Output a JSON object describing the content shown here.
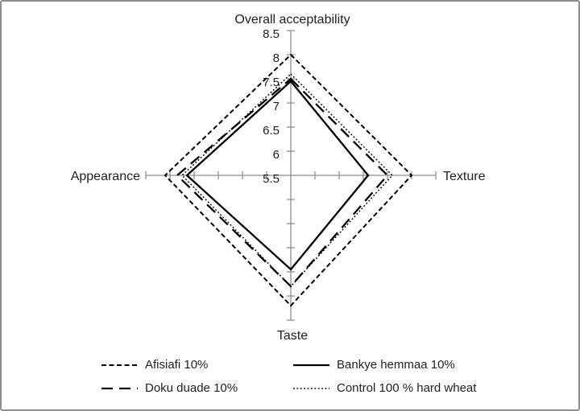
{
  "chart_data": {
    "type": "radar",
    "title": "",
    "axes": [
      {
        "label": "Overall acceptability",
        "position": "top"
      },
      {
        "label": "Texture",
        "position": "right"
      },
      {
        "label": "Taste",
        "position": "bottom"
      },
      {
        "label": "Appearance",
        "position": "left"
      }
    ],
    "scale": {
      "min": 5.5,
      "max": 8.5,
      "step": 0.5,
      "tick_labels_top_to_center": [
        "8.5",
        "8",
        "7.5",
        "7",
        "6.5",
        "6",
        "5.5"
      ]
    },
    "values_axis_order": [
      "Overall acceptability",
      "Texture",
      "Taste",
      "Appearance"
    ],
    "series": [
      {
        "name": "Afisiafi 10%",
        "line_style": "dash",
        "values": [
          8.0,
          8.0,
          8.2,
          8.1
        ]
      },
      {
        "name": "Bankye hemmaa 10%",
        "line_style": "solid",
        "values": [
          7.45,
          7.1,
          7.45,
          7.65
        ]
      },
      {
        "name": "Doku duade 10%",
        "line_style": "long-dash",
        "values": [
          7.5,
          7.5,
          7.8,
          7.85
        ]
      },
      {
        "name": "Control 100 % hard wheat",
        "line_style": "dot",
        "values": [
          7.6,
          7.6,
          7.8,
          7.75
        ]
      }
    ],
    "grid": "ticks-only-no-rings",
    "legend_position": "bottom",
    "colors": {
      "series_line": "#000000",
      "axis_line": "#8e8e8e",
      "text": "#1f1f1f",
      "background": "#ffffff",
      "frame_border": "#8f8f8f"
    }
  }
}
